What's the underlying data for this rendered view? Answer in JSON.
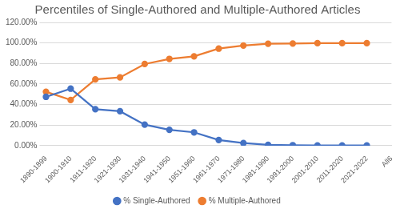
{
  "chart_data": {
    "type": "line",
    "title": "Percentiles of Single-Authored and Multiple-Authored Articles",
    "categories": [
      "1890-1899",
      "1900-1910",
      "1911-1920",
      "1921-1930",
      "1931-1940",
      "1941-1950",
      "1951-1960",
      "1961-1970",
      "1971-1980",
      "1981-1990",
      "1991-2000",
      "2001-2010",
      "2011-2020",
      "2021-2022",
      "All6"
    ],
    "series": [
      {
        "name": "% Single-Authored",
        "color": "#4472c4",
        "marker": "circle",
        "values": [
          47.5,
          55.5,
          35.5,
          33.5,
          20.5,
          15.5,
          13,
          5.5,
          2.5,
          0.8,
          0.5,
          0.2,
          0.2,
          0.2,
          null
        ]
      },
      {
        "name": "% Multiple-Authored",
        "color": "#ed7d31",
        "marker": "circle",
        "values": [
          52.5,
          44.5,
          64.5,
          66.5,
          79.5,
          84.5,
          87,
          94.5,
          97.5,
          99.2,
          99.5,
          99.8,
          99.8,
          99.8,
          null
        ]
      }
    ],
    "ylim": [
      0,
      120
    ],
    "yticks": [
      {
        "value": 0,
        "label": "0.00%"
      },
      {
        "value": 20,
        "label": "20.00%"
      },
      {
        "value": 40,
        "label": "40.00%"
      },
      {
        "value": 60,
        "label": "60.00%"
      },
      {
        "value": 80,
        "label": "80.00%"
      },
      {
        "value": 100,
        "label": "100.00%"
      },
      {
        "value": 120,
        "label": "120.00%"
      }
    ],
    "grid": true,
    "legend": "bottom"
  }
}
